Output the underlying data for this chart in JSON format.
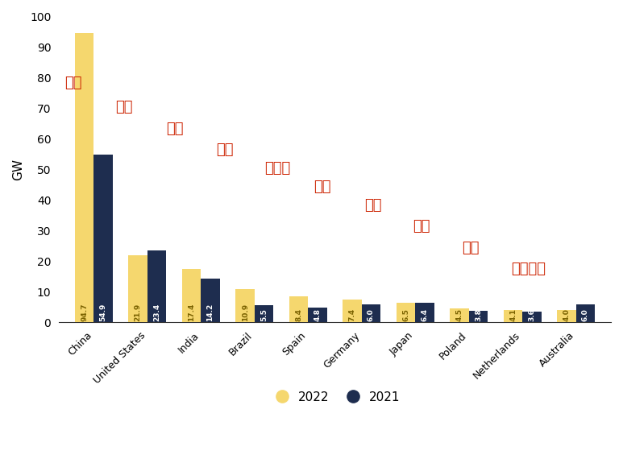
{
  "categories": [
    "China",
    "United States",
    "India",
    "Brazil",
    "Spain",
    "Germany",
    "Japan",
    "Poland",
    "Netherlands",
    "Australia"
  ],
  "values_2022": [
    94.7,
    21.9,
    17.4,
    10.9,
    8.4,
    7.4,
    6.5,
    4.5,
    4.1,
    4.0
  ],
  "values_2021": [
    54.9,
    23.4,
    14.2,
    5.5,
    4.8,
    6.0,
    6.4,
    3.8,
    3.6,
    6.0
  ],
  "chinese_labels": [
    "中国",
    "美国",
    "印度",
    "巴西",
    "西班牙",
    "德国",
    "日本",
    "波兰",
    "荷兰",
    "澳大利亚"
  ],
  "color_2022": "#F5D76E",
  "color_2021": "#1E2D4F",
  "bar_value_color_2022": "#7a6200",
  "bar_value_color_2021": "#ffffff",
  "chinese_label_color": "#CC2200",
  "ylabel": "GW",
  "ylim": [
    0,
    100
  ],
  "yticks": [
    0,
    10,
    20,
    30,
    40,
    50,
    60,
    70,
    80,
    90,
    100
  ],
  "background_color": "#ffffff",
  "bar_width": 0.35,
  "legend_2022": "2022",
  "legend_2021": "2021",
  "chinese_y_positions": [
    76,
    68,
    61,
    54,
    48,
    42,
    36,
    29,
    22,
    15
  ],
  "chinese_x_offsets": [
    -0.55,
    0.4,
    1.35,
    2.28,
    3.18,
    4.1,
    5.05,
    5.95,
    6.87,
    7.78
  ]
}
